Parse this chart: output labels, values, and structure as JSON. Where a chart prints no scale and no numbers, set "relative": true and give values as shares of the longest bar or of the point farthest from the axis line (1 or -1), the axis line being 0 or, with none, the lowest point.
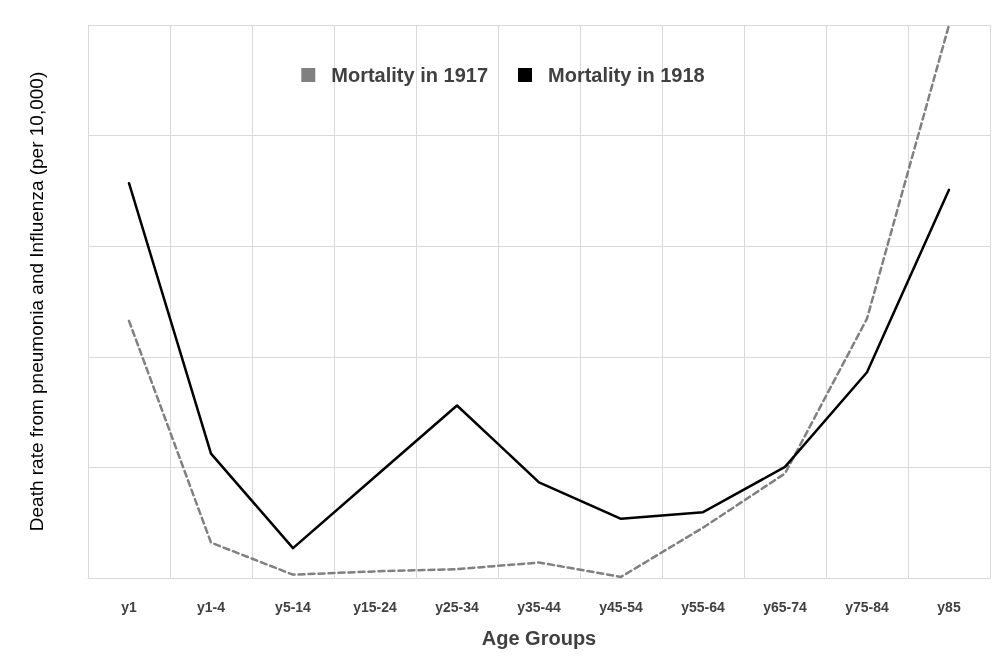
{
  "chart_data": {
    "type": "line",
    "xlabel": "Age Groups",
    "ylabel": "Death rate from pneumonia and Influenza (per 10,000)",
    "categories": [
      "y1",
      "y1-4",
      "y5-14",
      "y15-24",
      "y25-34",
      "y35-44",
      "y45-54",
      "y55-64",
      "y65-74",
      "y75-84",
      "y85"
    ],
    "relative": true,
    "grid": true,
    "legend": "top",
    "marker": "none",
    "series": [
      {
        "name": "Mortality in 1917",
        "color": "#808080",
        "line_style": "dashed",
        "values": [
          0.465,
          0.064,
          0.006,
          0.012,
          0.016,
          0.028,
          0.002,
          0.091,
          0.189,
          0.469,
          1
        ]
      },
      {
        "name": "Mortality in 1918",
        "color": "#000000",
        "line_style": "solid",
        "values": [
          0.714,
          0.225,
          0.054,
          0.183,
          0.312,
          0.173,
          0.107,
          0.119,
          0.201,
          0.372,
          0.702
        ]
      }
    ]
  }
}
